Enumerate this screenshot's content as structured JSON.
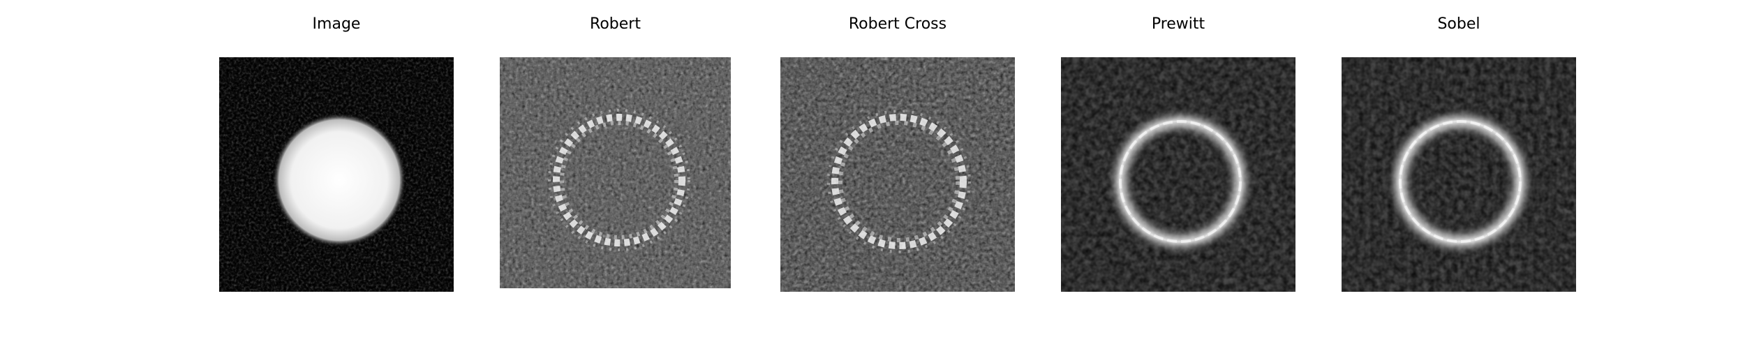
{
  "figure": {
    "panels": [
      {
        "title": "Image",
        "kind": "blob"
      },
      {
        "title": "Robert",
        "kind": "ring-noisy"
      },
      {
        "title": "Robert Cross",
        "kind": "ring-noisy"
      },
      {
        "title": "Prewitt",
        "kind": "ring-smooth"
      },
      {
        "title": "Sobel",
        "kind": "ring-smooth"
      }
    ]
  }
}
